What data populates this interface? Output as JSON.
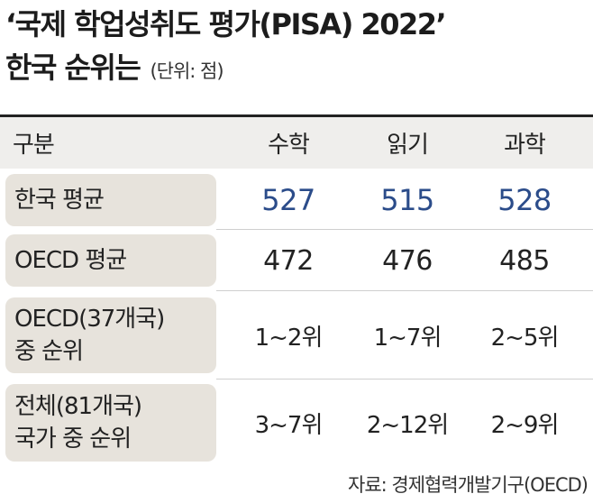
{
  "title": {
    "line1": "‘국제 학업성취도 평가(PISA) 2022’",
    "line2": "한국 순위는",
    "unit": "(단위: 점)"
  },
  "table": {
    "headers": [
      "구분",
      "수학",
      "읽기",
      "과학"
    ],
    "rows": [
      {
        "label_lines": [
          "한국 평균"
        ],
        "values": [
          "527",
          "515",
          "528"
        ]
      },
      {
        "label_lines": [
          "OECD 평균"
        ],
        "values": [
          "472",
          "476",
          "485"
        ]
      },
      {
        "label_lines": [
          "OECD(37개국)",
          "중 순위"
        ],
        "values": [
          "1~2위",
          "1~7위",
          "2~5위"
        ]
      },
      {
        "label_lines": [
          "전체(81개국)",
          "국가 중 순위"
        ],
        "values": [
          "3~7위",
          "2~12위",
          "2~9위"
        ]
      }
    ]
  },
  "source": "자료: 경제협력개발기구(OECD)",
  "colors": {
    "highlight_value": "#2b4c8a",
    "label_background": "#e7e3dc",
    "header_background": "#efeeec"
  }
}
